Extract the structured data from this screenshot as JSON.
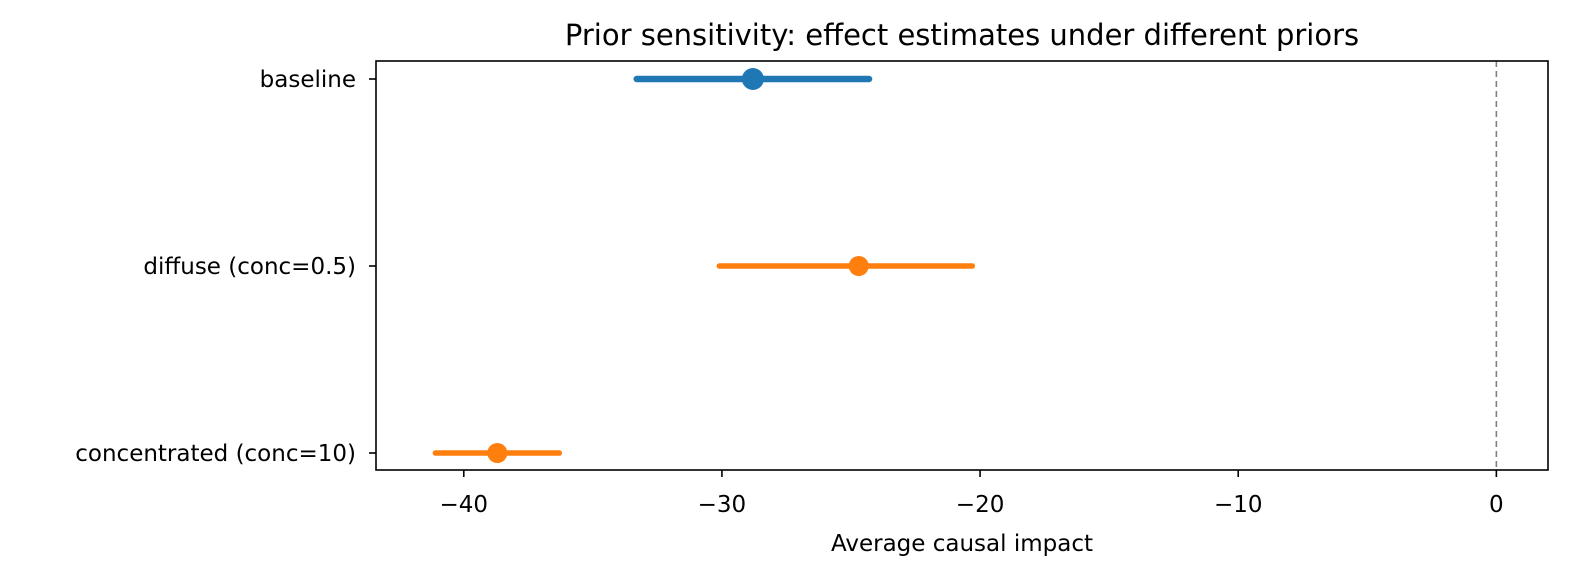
{
  "chart_data": {
    "type": "forest",
    "title": "Prior sensitivity: effect estimates under different priors",
    "xlabel": "Average causal impact",
    "ylabel": "",
    "xlim": [
      -43.4,
      2.0
    ],
    "xticks": [
      -40,
      -30,
      -20,
      -10,
      0
    ],
    "xtick_labels": [
      "−40",
      "−30",
      "−20",
      "−10",
      "0"
    ],
    "reference_line": {
      "x": 0,
      "style": "dashed",
      "color": "#808080"
    },
    "grid": false,
    "legend": "none",
    "rows": [
      {
        "label": "baseline",
        "estimate": -28.8,
        "lower": -33.3,
        "upper": -24.3,
        "color": "#1f77b4",
        "emphasis": true
      },
      {
        "label": "diffuse (conc=0.5)",
        "estimate": -24.7,
        "lower": -30.1,
        "upper": -20.3,
        "color": "#ff7f0e",
        "emphasis": false
      },
      {
        "label": "concentrated (conc=10)",
        "estimate": -38.7,
        "lower": -41.1,
        "upper": -36.3,
        "color": "#ff7f0e",
        "emphasis": false
      }
    ]
  }
}
